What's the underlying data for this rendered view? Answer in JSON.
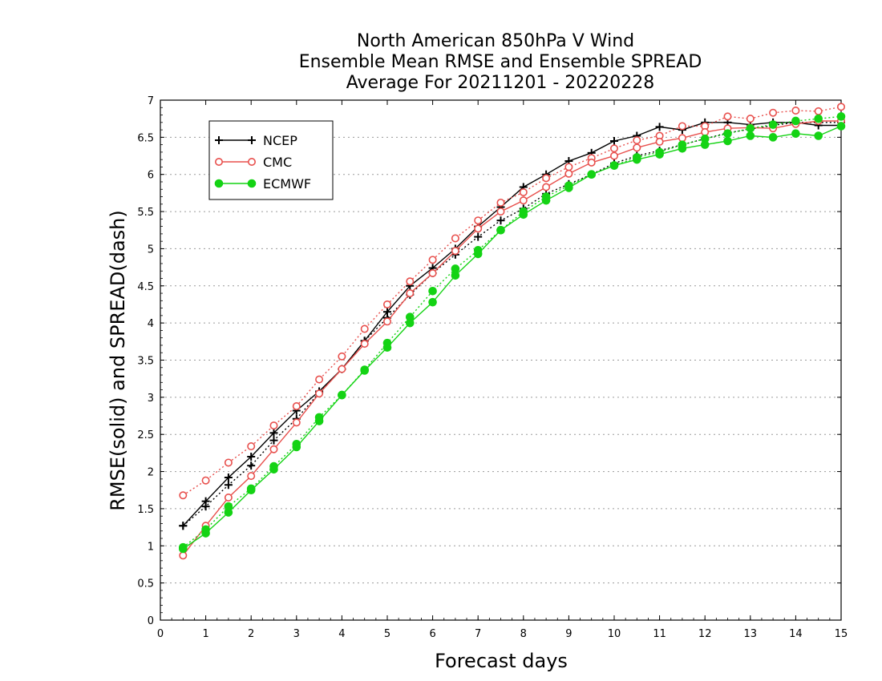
{
  "chart_data": {
    "type": "line",
    "title": [
      "North American 850hPa V Wind",
      "Ensemble Mean RMSE and Ensemble SPREAD",
      "Average For 20211201 - 20220228"
    ],
    "xlabel": "Forecast days",
    "ylabel": "RMSE(solid) and SPREAD(dash)",
    "xlim": [
      0,
      15
    ],
    "ylim": [
      0,
      7
    ],
    "xticks": [
      0,
      1,
      2,
      3,
      4,
      5,
      6,
      7,
      8,
      9,
      10,
      11,
      12,
      13,
      14,
      15
    ],
    "yticks": [
      0,
      0.5,
      1,
      1.5,
      2,
      2.5,
      3,
      3.5,
      4,
      4.5,
      5,
      5.5,
      6,
      6.5,
      7
    ],
    "ytick_labels": [
      "0",
      "0.5",
      "1",
      "1.5",
      "2",
      "2.5",
      "3",
      "3.5",
      "4",
      "4.5",
      "5",
      "5.5",
      "6",
      "6.5",
      "7"
    ],
    "grid": "horizontal dotted",
    "legend_position": "top-left",
    "x": [
      0.5,
      1,
      1.5,
      2,
      2.5,
      3,
      3.5,
      4,
      4.5,
      5,
      5.5,
      6,
      6.5,
      7,
      7.5,
      8,
      8.5,
      9,
      9.5,
      10,
      10.5,
      11,
      11.5,
      12,
      12.5,
      13,
      13.5,
      14,
      14.5,
      15
    ],
    "series": [
      {
        "name": "NCEP",
        "color": "#000000",
        "marker": "plus",
        "rmse": [
          1.27,
          1.6,
          1.92,
          2.2,
          2.52,
          2.82,
          3.08,
          3.38,
          3.76,
          4.15,
          4.5,
          4.74,
          5.0,
          5.3,
          5.56,
          5.83,
          6.0,
          6.18,
          6.29,
          6.45,
          6.52,
          6.64,
          6.6,
          6.7,
          6.7,
          6.67,
          6.7,
          6.7,
          6.66,
          6.66
        ],
        "spread": [
          1.27,
          1.53,
          1.82,
          2.08,
          2.42,
          2.71,
          3.06,
          3.38,
          3.76,
          4.07,
          4.38,
          4.67,
          4.92,
          5.16,
          5.38,
          5.54,
          5.74,
          5.87,
          6.0,
          6.15,
          6.25,
          6.32,
          6.4,
          6.48,
          6.56,
          6.61,
          6.66,
          6.7,
          6.7,
          6.7
        ]
      },
      {
        "name": "CMC",
        "color": "#e8504d",
        "marker": "circle-open",
        "rmse": [
          0.87,
          1.27,
          1.65,
          1.94,
          2.3,
          2.66,
          3.05,
          3.38,
          3.72,
          4.02,
          4.4,
          4.67,
          4.97,
          5.27,
          5.5,
          5.65,
          5.83,
          6.01,
          6.16,
          6.25,
          6.36,
          6.44,
          6.49,
          6.57,
          6.62,
          6.63,
          6.62,
          6.68,
          6.72,
          6.72
        ],
        "spread": [
          1.68,
          1.88,
          2.12,
          2.34,
          2.62,
          2.88,
          3.24,
          3.55,
          3.92,
          4.25,
          4.56,
          4.85,
          5.14,
          5.38,
          5.62,
          5.76,
          5.95,
          6.1,
          6.22,
          6.35,
          6.46,
          6.52,
          6.65,
          6.65,
          6.78,
          6.75,
          6.83,
          6.86,
          6.85,
          6.91
        ]
      },
      {
        "name": "ECMWF",
        "color": "#14d314",
        "marker": "circle-filled",
        "rmse": [
          0.96,
          1.17,
          1.45,
          1.75,
          2.03,
          2.33,
          2.68,
          3.03,
          3.36,
          3.67,
          4.0,
          4.28,
          4.64,
          4.93,
          5.25,
          5.46,
          5.65,
          5.82,
          6.0,
          6.12,
          6.2,
          6.27,
          6.35,
          6.4,
          6.45,
          6.52,
          6.5,
          6.55,
          6.52,
          6.65
        ],
        "spread": [
          0.98,
          1.22,
          1.53,
          1.77,
          2.07,
          2.37,
          2.73,
          3.03,
          3.37,
          3.73,
          4.08,
          4.43,
          4.73,
          4.98,
          5.25,
          5.5,
          5.7,
          5.85,
          6.0,
          6.12,
          6.23,
          6.3,
          6.4,
          6.48,
          6.55,
          6.62,
          6.67,
          6.72,
          6.75,
          6.78
        ]
      }
    ]
  }
}
